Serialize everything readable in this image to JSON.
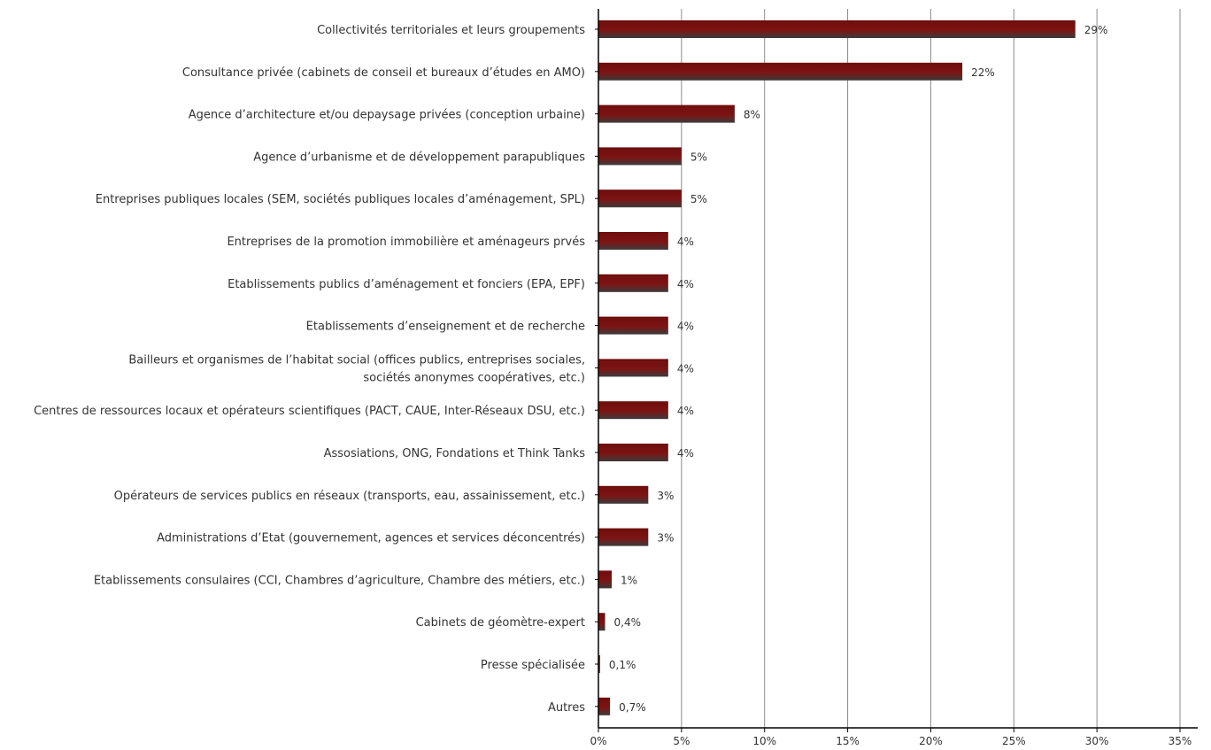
{
  "chart_data": {
    "type": "bar",
    "orientation": "horizontal",
    "title": "",
    "xlabel": "",
    "ylabel": "",
    "xlim": [
      0,
      35
    ],
    "x_ticks": [
      "0%",
      "5%",
      "10%",
      "15%",
      "20%",
      "25%",
      "30%",
      "35%"
    ],
    "grid": "vertical",
    "bar_color": "#7a1010",
    "categories": [
      [
        "Collectivités territoriales et leurs groupements"
      ],
      [
        "Consultance privée (cabinets de conseil et bureaux d’études en AMO)"
      ],
      [
        "Agence d’architecture et/ou depaysage privées (conception urbaine)"
      ],
      [
        "Agence d’urbanisme et de développement parapubliques"
      ],
      [
        "Entreprises publiques locales (SEM, sociétés publiques locales d’aménagement, SPL)"
      ],
      [
        "Entreprises de la promotion immobilière et aménageurs prvés"
      ],
      [
        "Etablissements publics d’aménagement et fonciers (EPA, EPF)"
      ],
      [
        "Etablissements d’enseignement et de recherche"
      ],
      [
        "Bailleurs et organismes de l’habitat social (offices publics, entreprises sociales,",
        "sociétés anonymes coopératives, etc.)"
      ],
      [
        "Centres de ressources locaux et opérateurs scientifiques (PACT, CAUE, Inter-Réseaux DSU, etc.)"
      ],
      [
        "Assosiations, ONG, Fondations et Think Tanks"
      ],
      [
        "Opérateurs de services publics en réseaux (transports, eau, assainissement, etc.)"
      ],
      [
        "Administrations d’Etat (gouvernement, agences et services déconcentrés)"
      ],
      [
        "Etablissements consulaires (CCI, Chambres d’agriculture, Chambre des métiers, etc.)"
      ],
      [
        "Cabinets de géomètre-expert"
      ],
      [
        "Presse spécialisée"
      ],
      [
        "Autres"
      ]
    ],
    "values": [
      28.7,
      21.9,
      8.2,
      5.0,
      5.0,
      4.2,
      4.2,
      4.2,
      4.2,
      4.2,
      4.2,
      3.0,
      3.0,
      0.8,
      0.4,
      0.1,
      0.7
    ],
    "value_labels": [
      "29%",
      "22%",
      "8%",
      "5%",
      "5%",
      "4%",
      "4%",
      "4%",
      "4%",
      "4%",
      "4%",
      "3%",
      "3%",
      "1%",
      "0,4%",
      "0,1%",
      "0,7%"
    ]
  }
}
